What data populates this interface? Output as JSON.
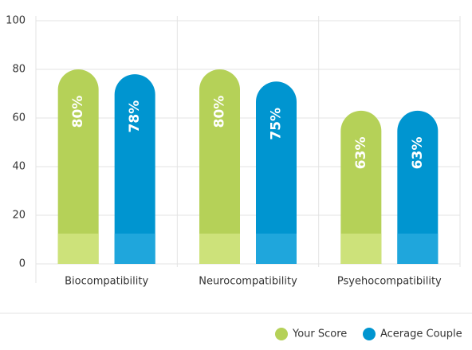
{
  "chart_data": {
    "type": "bar",
    "categories": [
      "Biocompatibility",
      "Neurocompatibility",
      "Psyehocompatibility"
    ],
    "series": [
      {
        "name": "Your Score",
        "color": "#b5d158",
        "values": [
          80,
          80,
          63
        ],
        "value_labels": [
          "80%",
          "80%",
          "63%"
        ]
      },
      {
        "name": "Acerage Couple",
        "color": "#0095d0",
        "values": [
          78,
          75,
          63
        ],
        "value_labels": [
          "78%",
          "75%",
          "63%"
        ]
      }
    ],
    "ylim": [
      0,
      100
    ],
    "yticks": [
      0,
      20,
      40,
      60,
      80,
      100
    ],
    "grid": true,
    "legend": "bottom-right"
  }
}
